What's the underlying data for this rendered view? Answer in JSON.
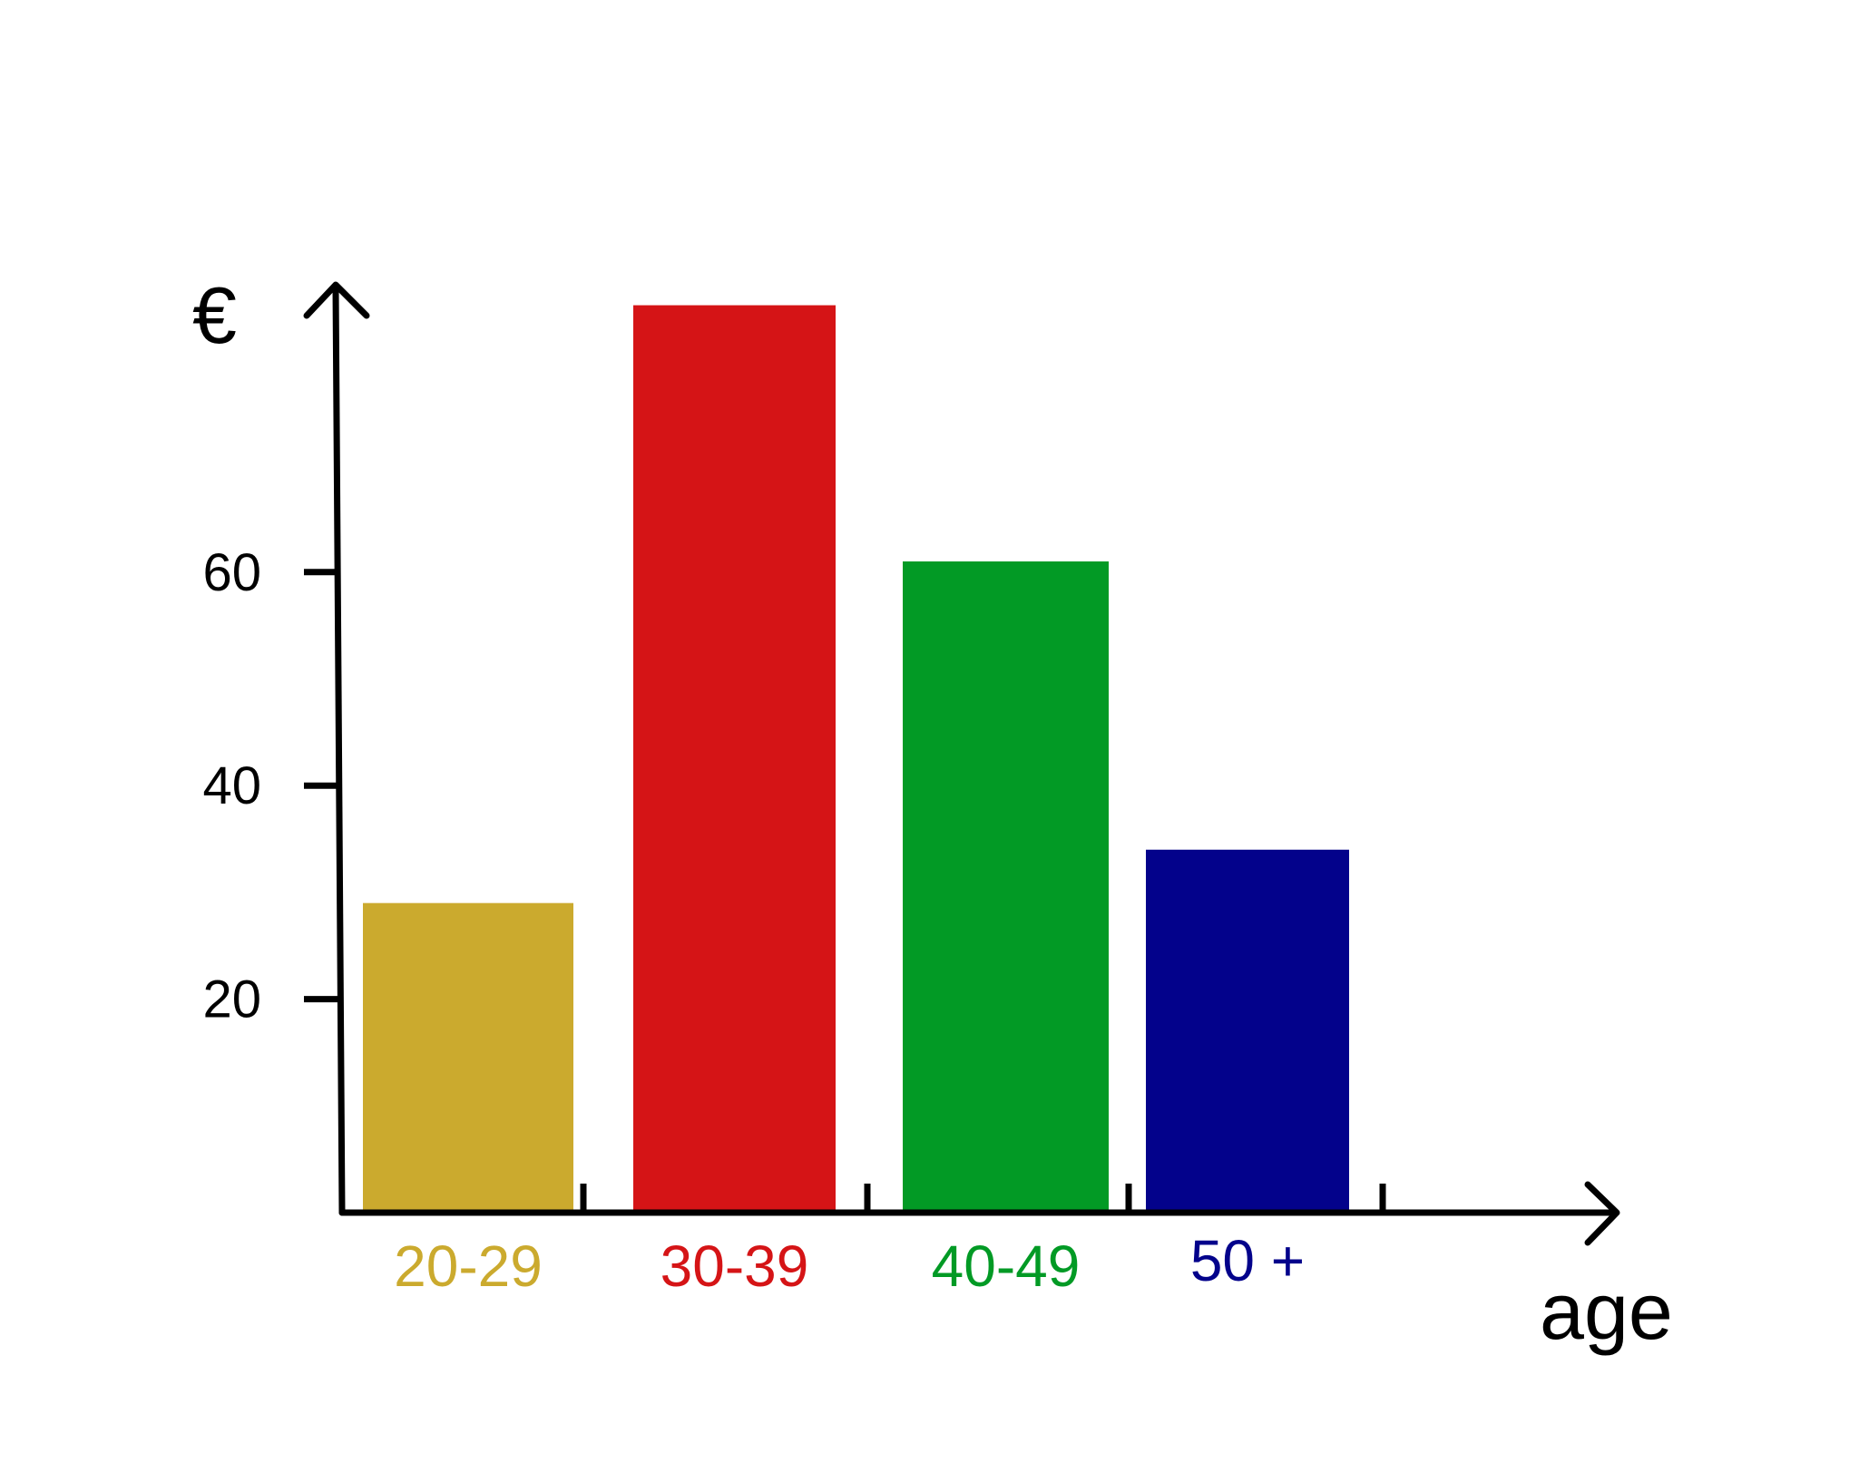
{
  "chart_data": {
    "type": "bar",
    "categories": [
      "20-29",
      "30-39",
      "40-49",
      "50 +"
    ],
    "values": [
      29,
      85,
      61,
      34
    ],
    "colors": [
      "#CBAA2E",
      "#D51416",
      "#029A25",
      "#03028B"
    ],
    "ylabel": "€",
    "xlabel": "age",
    "yticks": [
      20,
      40,
      60
    ],
    "ylim": [
      0,
      90
    ],
    "grid": false,
    "legend": "none"
  }
}
